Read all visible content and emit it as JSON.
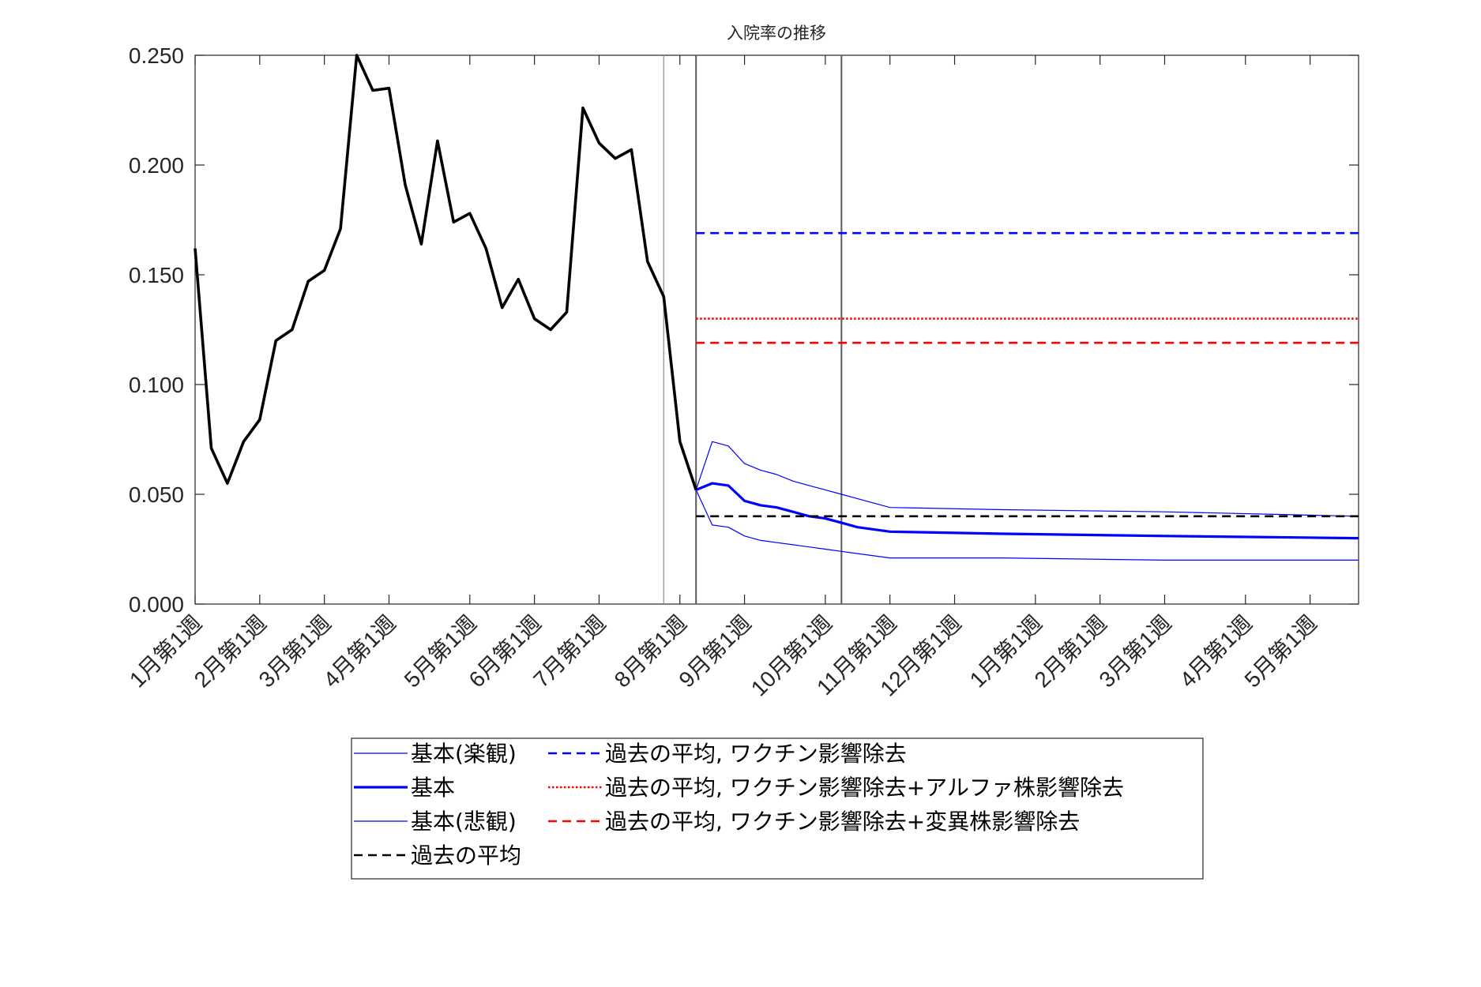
{
  "chart_data": {
    "type": "line",
    "title": "入院率の推移",
    "xlabel": "",
    "ylabel": "",
    "ylim": [
      0,
      0.25
    ],
    "yticks": [
      "0.000",
      "0.050",
      "0.100",
      "0.150",
      "0.200",
      "0.250"
    ],
    "ytick_values": [
      0,
      0.05,
      0.1,
      0.15,
      0.2,
      0.25
    ],
    "xlim": [
      0,
      72
    ],
    "xtick_labels": [
      "1月第1週",
      "2月第1週",
      "3月第1週",
      "4月第1週",
      "5月第1週",
      "6月第1週",
      "7月第1週",
      "8月第1週",
      "9月第1週",
      "10月第1週",
      "11月第1週",
      "12月第1週",
      "1月第1週",
      "2月第1週",
      "3月第1週",
      "4月第1週",
      "5月第1週"
    ],
    "xtick_positions": [
      0,
      4,
      8,
      12,
      17,
      21,
      25,
      30,
      34,
      39,
      43,
      47,
      52,
      56,
      60,
      65,
      69
    ],
    "vlines": [
      29,
      31,
      40
    ],
    "series": [
      {
        "name": "基本(楽観)",
        "color": "#0000ff",
        "style": "thin",
        "points": [
          [
            31,
            0.052
          ],
          [
            32,
            0.074
          ],
          [
            33,
            0.072
          ],
          [
            34,
            0.064
          ],
          [
            35,
            0.061
          ],
          [
            36,
            0.059
          ],
          [
            37,
            0.056
          ],
          [
            38,
            0.054
          ],
          [
            39,
            0.052
          ],
          [
            40,
            0.05
          ],
          [
            41,
            0.048
          ],
          [
            43,
            0.044
          ],
          [
            50,
            0.043
          ],
          [
            60,
            0.042
          ],
          [
            72,
            0.04
          ]
        ]
      },
      {
        "name": "基本",
        "color": "#0000ff",
        "style": "thick",
        "points": [
          [
            31,
            0.052
          ],
          [
            32,
            0.055
          ],
          [
            33,
            0.054
          ],
          [
            34,
            0.047
          ],
          [
            35,
            0.045
          ],
          [
            36,
            0.044
          ],
          [
            37,
            0.042
          ],
          [
            38,
            0.04
          ],
          [
            39,
            0.039
          ],
          [
            40,
            0.037
          ],
          [
            41,
            0.035
          ],
          [
            43,
            0.033
          ],
          [
            50,
            0.032
          ],
          [
            60,
            0.031
          ],
          [
            72,
            0.03
          ]
        ]
      },
      {
        "name": "基本(悲観)",
        "color": "#0000ff",
        "style": "thin",
        "points": [
          [
            31,
            0.052
          ],
          [
            32,
            0.036
          ],
          [
            33,
            0.035
          ],
          [
            34,
            0.031
          ],
          [
            35,
            0.029
          ],
          [
            36,
            0.028
          ],
          [
            37,
            0.027
          ],
          [
            38,
            0.026
          ],
          [
            39,
            0.025
          ],
          [
            40,
            0.024
          ],
          [
            41,
            0.023
          ],
          [
            43,
            0.021
          ],
          [
            50,
            0.021
          ],
          [
            60,
            0.02
          ],
          [
            72,
            0.02
          ]
        ]
      },
      {
        "name": "過去の平均",
        "color": "#000000",
        "style": "dashed",
        "points": [
          [
            31,
            0.04
          ],
          [
            72,
            0.04
          ]
        ]
      },
      {
        "name": "過去の平均, ワクチン影響除去",
        "color": "#0000ff",
        "style": "dashed",
        "points": [
          [
            31,
            0.169
          ],
          [
            72,
            0.169
          ]
        ]
      },
      {
        "name": "過去の平均, ワクチン影響除去+アルファ株影響除去",
        "color": "#ff0000",
        "style": "dotted",
        "points": [
          [
            31,
            0.13
          ],
          [
            72,
            0.13
          ]
        ]
      },
      {
        "name": "過去の平均, ワクチン影響除去+変異株影響除去",
        "color": "#ff0000",
        "style": "dashed",
        "points": [
          [
            31,
            0.119
          ],
          [
            72,
            0.119
          ]
        ]
      },
      {
        "name": "",
        "color": "#000000",
        "style": "actual",
        "points": [
          [
            0,
            0.162
          ],
          [
            1,
            0.071
          ],
          [
            2,
            0.055
          ],
          [
            3,
            0.074
          ],
          [
            4,
            0.084
          ],
          [
            5,
            0.12
          ],
          [
            6,
            0.125
          ],
          [
            7,
            0.147
          ],
          [
            8,
            0.152
          ],
          [
            9,
            0.171
          ],
          [
            10,
            0.25
          ],
          [
            11,
            0.234
          ],
          [
            12,
            0.235
          ],
          [
            13,
            0.191
          ],
          [
            14,
            0.164
          ],
          [
            15,
            0.211
          ],
          [
            16,
            0.174
          ],
          [
            17,
            0.178
          ],
          [
            18,
            0.162
          ],
          [
            19,
            0.135
          ],
          [
            20,
            0.148
          ],
          [
            21,
            0.13
          ],
          [
            22,
            0.125
          ],
          [
            23,
            0.133
          ],
          [
            24,
            0.226
          ],
          [
            25,
            0.21
          ],
          [
            26,
            0.203
          ],
          [
            27,
            0.207
          ],
          [
            28,
            0.156
          ],
          [
            29,
            0.14
          ],
          [
            30,
            0.074
          ],
          [
            31,
            0.052
          ]
        ]
      }
    ],
    "legend": {
      "placement": "below",
      "left": [
        "基本(楽観)",
        "基本",
        "基本(悲観)",
        "過去の平均"
      ],
      "right": [
        "過去の平均, ワクチン影響除去",
        "過去の平均, ワクチン影響除去+アルファ株影響除去",
        "過去の平均, ワクチン影響除去+変異株影響除去"
      ]
    }
  }
}
